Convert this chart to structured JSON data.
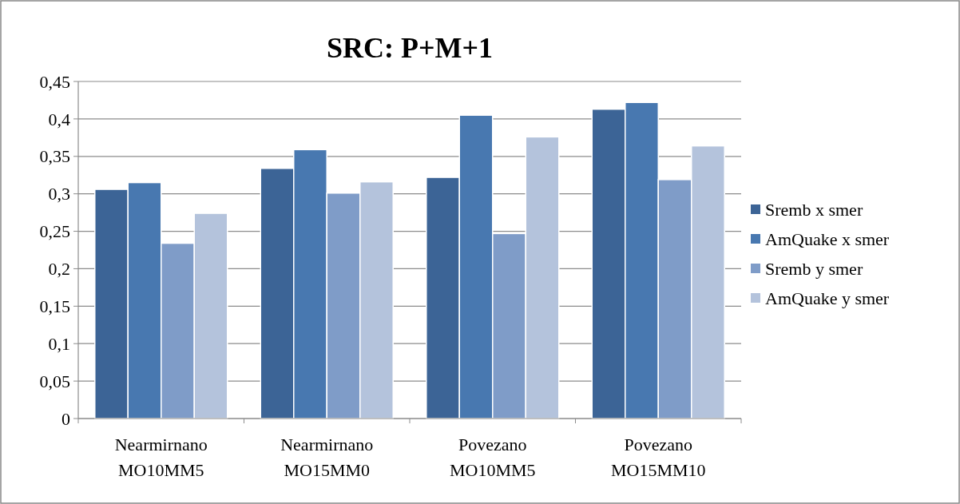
{
  "chart_data": {
    "type": "bar",
    "title": "SRC: P+M+1",
    "categories": [
      "Nearmirnano\nMO10MM5",
      "Nearmirnano\nMO15MM0",
      "Povezano\nMO10MM5",
      "Povezano\nMO15MM10"
    ],
    "series": [
      {
        "name": "Sremb x smer",
        "color": "#3c6496",
        "values": [
          0.306,
          0.334,
          0.322,
          0.413
        ]
      },
      {
        "name": "AmQuake x smer",
        "color": "#4878b0",
        "values": [
          0.315,
          0.359,
          0.405,
          0.422
        ]
      },
      {
        "name": "Sremb y smer",
        "color": "#7f9cc8",
        "values": [
          0.234,
          0.301,
          0.247,
          0.319
        ]
      },
      {
        "name": "AmQuake y smer",
        "color": "#b4c3dc",
        "values": [
          0.274,
          0.316,
          0.376,
          0.364
        ]
      }
    ],
    "ylim": [
      0,
      0.45
    ],
    "yticks": [
      0,
      {
        "value": 0.05,
        "label": "0,05"
      },
      {
        "value": 0.1,
        "label": "0,1"
      },
      {
        "value": 0.15,
        "label": "0,15"
      },
      {
        "value": 0.2,
        "label": "0,2"
      },
      {
        "value": 0.25,
        "label": "0,25"
      },
      {
        "value": 0.3,
        "label": "0,3"
      },
      {
        "value": 0.35,
        "label": "0,35"
      },
      {
        "value": 0.4,
        "label": "0,4"
      },
      {
        "value": 0.45,
        "label": "0,45"
      }
    ],
    "grid": "y",
    "legend": "right"
  }
}
